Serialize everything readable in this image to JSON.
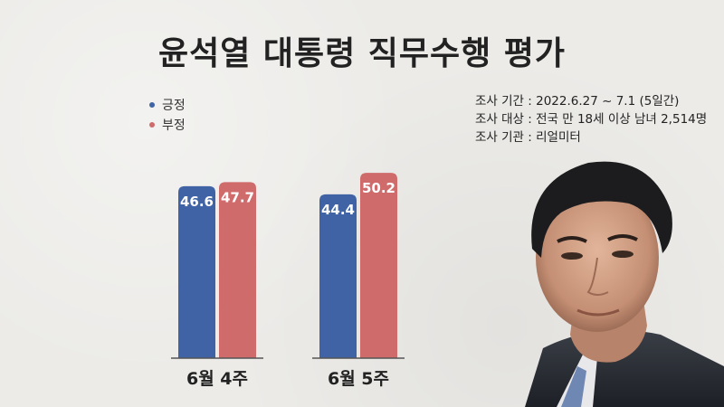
{
  "colors": {
    "positive": "#3f63a4",
    "negative": "#cf6b6b",
    "title": "#222222"
  },
  "title": "윤석열 대통령 직무수행 평가",
  "info": {
    "period": "조사 기간 : 2022.6.27 ~ 7.1 (5일간)",
    "target": "조사 대상 : 전국 만 18세 이상 남녀 2,514명",
    "agency": "조사 기관 : 리얼미터"
  },
  "chart_data": {
    "type": "bar",
    "categories": [
      "6월 4주",
      "6월 5주"
    ],
    "series": [
      {
        "name": "긍정",
        "values": [
          46.6,
          44.4
        ],
        "color": "#3f63a4"
      },
      {
        "name": "부정",
        "values": [
          47.7,
          50.2
        ],
        "color": "#cf6b6b"
      }
    ],
    "legend": "top-left",
    "grid": false
  }
}
